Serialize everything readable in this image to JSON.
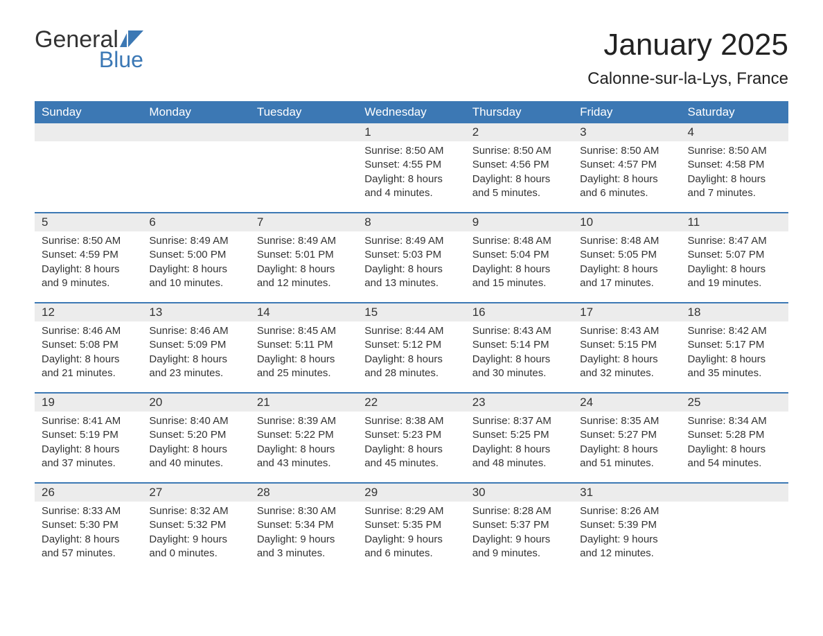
{
  "logo": {
    "word1": "General",
    "word2": "Blue"
  },
  "title": "January 2025",
  "location": "Calonne-sur-la-Lys, France",
  "brand_color": "#3c78b4",
  "header_bg": "#3c78b4",
  "header_text_color": "#ffffff",
  "daynum_bg": "#ececec",
  "text_color": "#333333",
  "day_headers": [
    "Sunday",
    "Monday",
    "Tuesday",
    "Wednesday",
    "Thursday",
    "Friday",
    "Saturday"
  ],
  "weeks": [
    [
      {
        "day": "",
        "sunrise": "",
        "sunset": "",
        "daylight_l1": "",
        "daylight_l2": ""
      },
      {
        "day": "",
        "sunrise": "",
        "sunset": "",
        "daylight_l1": "",
        "daylight_l2": ""
      },
      {
        "day": "",
        "sunrise": "",
        "sunset": "",
        "daylight_l1": "",
        "daylight_l2": ""
      },
      {
        "day": "1",
        "sunrise": "Sunrise: 8:50 AM",
        "sunset": "Sunset: 4:55 PM",
        "daylight_l1": "Daylight: 8 hours",
        "daylight_l2": "and 4 minutes."
      },
      {
        "day": "2",
        "sunrise": "Sunrise: 8:50 AM",
        "sunset": "Sunset: 4:56 PM",
        "daylight_l1": "Daylight: 8 hours",
        "daylight_l2": "and 5 minutes."
      },
      {
        "day": "3",
        "sunrise": "Sunrise: 8:50 AM",
        "sunset": "Sunset: 4:57 PM",
        "daylight_l1": "Daylight: 8 hours",
        "daylight_l2": "and 6 minutes."
      },
      {
        "day": "4",
        "sunrise": "Sunrise: 8:50 AM",
        "sunset": "Sunset: 4:58 PM",
        "daylight_l1": "Daylight: 8 hours",
        "daylight_l2": "and 7 minutes."
      }
    ],
    [
      {
        "day": "5",
        "sunrise": "Sunrise: 8:50 AM",
        "sunset": "Sunset: 4:59 PM",
        "daylight_l1": "Daylight: 8 hours",
        "daylight_l2": "and 9 minutes."
      },
      {
        "day": "6",
        "sunrise": "Sunrise: 8:49 AM",
        "sunset": "Sunset: 5:00 PM",
        "daylight_l1": "Daylight: 8 hours",
        "daylight_l2": "and 10 minutes."
      },
      {
        "day": "7",
        "sunrise": "Sunrise: 8:49 AM",
        "sunset": "Sunset: 5:01 PM",
        "daylight_l1": "Daylight: 8 hours",
        "daylight_l2": "and 12 minutes."
      },
      {
        "day": "8",
        "sunrise": "Sunrise: 8:49 AM",
        "sunset": "Sunset: 5:03 PM",
        "daylight_l1": "Daylight: 8 hours",
        "daylight_l2": "and 13 minutes."
      },
      {
        "day": "9",
        "sunrise": "Sunrise: 8:48 AM",
        "sunset": "Sunset: 5:04 PM",
        "daylight_l1": "Daylight: 8 hours",
        "daylight_l2": "and 15 minutes."
      },
      {
        "day": "10",
        "sunrise": "Sunrise: 8:48 AM",
        "sunset": "Sunset: 5:05 PM",
        "daylight_l1": "Daylight: 8 hours",
        "daylight_l2": "and 17 minutes."
      },
      {
        "day": "11",
        "sunrise": "Sunrise: 8:47 AM",
        "sunset": "Sunset: 5:07 PM",
        "daylight_l1": "Daylight: 8 hours",
        "daylight_l2": "and 19 minutes."
      }
    ],
    [
      {
        "day": "12",
        "sunrise": "Sunrise: 8:46 AM",
        "sunset": "Sunset: 5:08 PM",
        "daylight_l1": "Daylight: 8 hours",
        "daylight_l2": "and 21 minutes."
      },
      {
        "day": "13",
        "sunrise": "Sunrise: 8:46 AM",
        "sunset": "Sunset: 5:09 PM",
        "daylight_l1": "Daylight: 8 hours",
        "daylight_l2": "and 23 minutes."
      },
      {
        "day": "14",
        "sunrise": "Sunrise: 8:45 AM",
        "sunset": "Sunset: 5:11 PM",
        "daylight_l1": "Daylight: 8 hours",
        "daylight_l2": "and 25 minutes."
      },
      {
        "day": "15",
        "sunrise": "Sunrise: 8:44 AM",
        "sunset": "Sunset: 5:12 PM",
        "daylight_l1": "Daylight: 8 hours",
        "daylight_l2": "and 28 minutes."
      },
      {
        "day": "16",
        "sunrise": "Sunrise: 8:43 AM",
        "sunset": "Sunset: 5:14 PM",
        "daylight_l1": "Daylight: 8 hours",
        "daylight_l2": "and 30 minutes."
      },
      {
        "day": "17",
        "sunrise": "Sunrise: 8:43 AM",
        "sunset": "Sunset: 5:15 PM",
        "daylight_l1": "Daylight: 8 hours",
        "daylight_l2": "and 32 minutes."
      },
      {
        "day": "18",
        "sunrise": "Sunrise: 8:42 AM",
        "sunset": "Sunset: 5:17 PM",
        "daylight_l1": "Daylight: 8 hours",
        "daylight_l2": "and 35 minutes."
      }
    ],
    [
      {
        "day": "19",
        "sunrise": "Sunrise: 8:41 AM",
        "sunset": "Sunset: 5:19 PM",
        "daylight_l1": "Daylight: 8 hours",
        "daylight_l2": "and 37 minutes."
      },
      {
        "day": "20",
        "sunrise": "Sunrise: 8:40 AM",
        "sunset": "Sunset: 5:20 PM",
        "daylight_l1": "Daylight: 8 hours",
        "daylight_l2": "and 40 minutes."
      },
      {
        "day": "21",
        "sunrise": "Sunrise: 8:39 AM",
        "sunset": "Sunset: 5:22 PM",
        "daylight_l1": "Daylight: 8 hours",
        "daylight_l2": "and 43 minutes."
      },
      {
        "day": "22",
        "sunrise": "Sunrise: 8:38 AM",
        "sunset": "Sunset: 5:23 PM",
        "daylight_l1": "Daylight: 8 hours",
        "daylight_l2": "and 45 minutes."
      },
      {
        "day": "23",
        "sunrise": "Sunrise: 8:37 AM",
        "sunset": "Sunset: 5:25 PM",
        "daylight_l1": "Daylight: 8 hours",
        "daylight_l2": "and 48 minutes."
      },
      {
        "day": "24",
        "sunrise": "Sunrise: 8:35 AM",
        "sunset": "Sunset: 5:27 PM",
        "daylight_l1": "Daylight: 8 hours",
        "daylight_l2": "and 51 minutes."
      },
      {
        "day": "25",
        "sunrise": "Sunrise: 8:34 AM",
        "sunset": "Sunset: 5:28 PM",
        "daylight_l1": "Daylight: 8 hours",
        "daylight_l2": "and 54 minutes."
      }
    ],
    [
      {
        "day": "26",
        "sunrise": "Sunrise: 8:33 AM",
        "sunset": "Sunset: 5:30 PM",
        "daylight_l1": "Daylight: 8 hours",
        "daylight_l2": "and 57 minutes."
      },
      {
        "day": "27",
        "sunrise": "Sunrise: 8:32 AM",
        "sunset": "Sunset: 5:32 PM",
        "daylight_l1": "Daylight: 9 hours",
        "daylight_l2": "and 0 minutes."
      },
      {
        "day": "28",
        "sunrise": "Sunrise: 8:30 AM",
        "sunset": "Sunset: 5:34 PM",
        "daylight_l1": "Daylight: 9 hours",
        "daylight_l2": "and 3 minutes."
      },
      {
        "day": "29",
        "sunrise": "Sunrise: 8:29 AM",
        "sunset": "Sunset: 5:35 PM",
        "daylight_l1": "Daylight: 9 hours",
        "daylight_l2": "and 6 minutes."
      },
      {
        "day": "30",
        "sunrise": "Sunrise: 8:28 AM",
        "sunset": "Sunset: 5:37 PM",
        "daylight_l1": "Daylight: 9 hours",
        "daylight_l2": "and 9 minutes."
      },
      {
        "day": "31",
        "sunrise": "Sunrise: 8:26 AM",
        "sunset": "Sunset: 5:39 PM",
        "daylight_l1": "Daylight: 9 hours",
        "daylight_l2": "and 12 minutes."
      },
      {
        "day": "",
        "sunrise": "",
        "sunset": "",
        "daylight_l1": "",
        "daylight_l2": ""
      }
    ]
  ]
}
